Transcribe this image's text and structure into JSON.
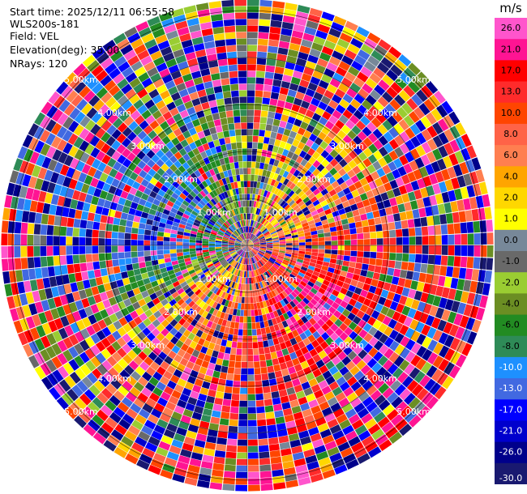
{
  "header": {
    "start_time": "Start time: 2025/12/11 06:55:58",
    "instrument": "WLS200s-181",
    "field": "Field: VEL",
    "elevation": "Elevation(deg): 35.00",
    "nrays": "NRays: 120"
  },
  "chart_data": {
    "type": "heatmap",
    "projection": "polar-ppi",
    "field": "VEL",
    "units": "m/s",
    "n_rays": 120,
    "elevation_deg": 35.0,
    "range_max_km": 5.5,
    "range_rings_km": [
      1.0,
      2.0,
      3.0,
      4.0,
      5.0
    ],
    "ring_labels": [
      "1.00km",
      "2.00km",
      "3.00km",
      "4.00km",
      "5.00km"
    ],
    "grid": true,
    "pattern": {
      "structure": "noisy ring beyond ~3 km, coherent sector-structured flow within",
      "southeast_sector_mean": 24,
      "south_sector_mean": 12,
      "southwest_sector_mean": 5,
      "west_sector_mean": -12,
      "northeast_sector_mean": 4,
      "east_sector_mean": 12
    },
    "colorbar": {
      "unit_label": "m/s",
      "tick_labels": [
        "26.0",
        "21.0",
        "17.0",
        "13.0",
        "10.0",
        "8.0",
        "6.0",
        "4.0",
        "2.0",
        "1.0",
        "0.0",
        "-1.0",
        "-2.0",
        "-4.0",
        "-6.0",
        "-8.0",
        "-10.0",
        "-13.0",
        "-17.0",
        "-21.0",
        "-26.0",
        "-30.0"
      ],
      "bins": [
        {
          "min": 26,
          "max": 30,
          "color": "#ff55cc"
        },
        {
          "min": 21,
          "max": 26,
          "color": "#ff1493"
        },
        {
          "min": 17,
          "max": 21,
          "color": "#ff0000"
        },
        {
          "min": 13,
          "max": 17,
          "color": "#ff2b2b"
        },
        {
          "min": 10,
          "max": 13,
          "color": "#ff4500"
        },
        {
          "min": 8,
          "max": 10,
          "color": "#ff6347"
        },
        {
          "min": 6,
          "max": 8,
          "color": "#ff7f50"
        },
        {
          "min": 4,
          "max": 6,
          "color": "#ffa500"
        },
        {
          "min": 2,
          "max": 4,
          "color": "#ffd700"
        },
        {
          "min": 1,
          "max": 2,
          "color": "#ffff00"
        },
        {
          "min": 0,
          "max": 1,
          "color": "#778899"
        },
        {
          "min": -1,
          "max": 0,
          "color": "#696969"
        },
        {
          "min": -2,
          "max": -1,
          "color": "#9acd32"
        },
        {
          "min": -4,
          "max": -2,
          "color": "#6b8e23"
        },
        {
          "min": -6,
          "max": -4,
          "color": "#228b22"
        },
        {
          "min": -8,
          "max": -6,
          "color": "#2e8b57"
        },
        {
          "min": -10,
          "max": -8,
          "color": "#1e90ff"
        },
        {
          "min": -13,
          "max": -10,
          "color": "#4169e1"
        },
        {
          "min": -17,
          "max": -13,
          "color": "#0000ff"
        },
        {
          "min": -21,
          "max": -17,
          "color": "#0000cd"
        },
        {
          "min": -26,
          "max": -21,
          "color": "#00008b"
        },
        {
          "min": -30,
          "max": -26,
          "color": "#191970"
        }
      ]
    }
  }
}
